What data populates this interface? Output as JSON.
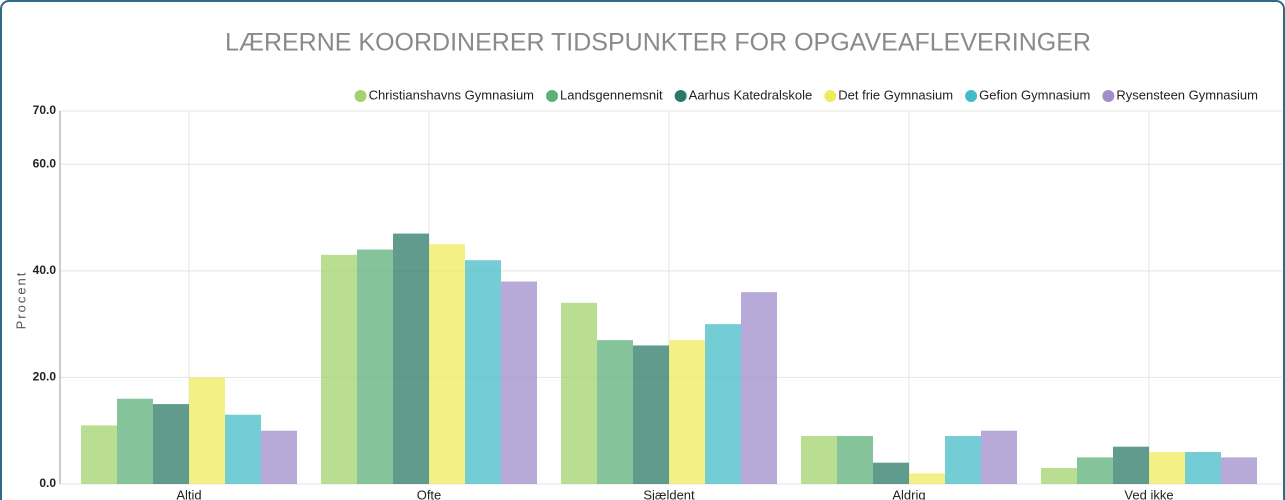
{
  "chart_data": {
    "type": "bar",
    "title": "LÆRERNE KOORDINERER TIDSPUNKTER FOR OPGAVEAFLEVERINGER",
    "y_label": "Procent",
    "categories": [
      "Altid",
      "Ofte",
      "Sjældent",
      "Aldrig",
      "Ved ikke"
    ],
    "series": [
      {
        "name": "Christianshavns Gymnasium",
        "color": "#a3d36c",
        "values": [
          11,
          43,
          34,
          9,
          3
        ]
      },
      {
        "name": "Landsgennemsnit",
        "color": "#5cb078",
        "values": [
          16,
          44,
          27,
          9,
          5
        ]
      },
      {
        "name": "Aarhus Katedralskole",
        "color": "#2b7a68",
        "values": [
          15,
          47,
          26,
          4,
          7
        ]
      },
      {
        "name": "Det frie Gymnasium",
        "color": "#efeb5c",
        "values": [
          20,
          45,
          27,
          2,
          6
        ]
      },
      {
        "name": "Gefion Gymnasium",
        "color": "#45bcc5",
        "values": [
          13,
          42,
          30,
          9,
          6
        ]
      },
      {
        "name": "Rysensteen Gymnasium",
        "color": "#a08dcb",
        "values": [
          10,
          38,
          36,
          10,
          5
        ]
      }
    ],
    "ylim": [
      0,
      70
    ],
    "yticks": [
      {
        "value": 0,
        "label": "0.0"
      },
      {
        "value": 20,
        "label": "20.0"
      },
      {
        "value": 40,
        "label": "40.0"
      },
      {
        "value": 60,
        "label": "60.0"
      },
      {
        "value": 70,
        "label": "70.0"
      }
    ],
    "grid": true,
    "legend": "top-right"
  }
}
